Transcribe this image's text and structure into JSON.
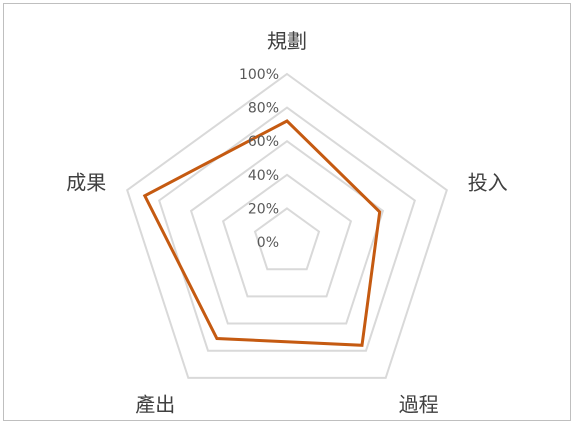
{
  "chart_data": {
    "type": "radar",
    "axes": [
      "規劃",
      "投入",
      "過程",
      "產出",
      "成果"
    ],
    "series": [
      {
        "values": [
          72,
          58,
          76,
          71,
          89
        ],
        "color": "#c55a11"
      }
    ],
    "ticks": [
      "0%",
      "20%",
      "40%",
      "60%",
      "80%",
      "100%"
    ],
    "range": [
      0,
      100
    ],
    "grid": true,
    "grid_color": "#d9d9d9",
    "legend": "none"
  }
}
